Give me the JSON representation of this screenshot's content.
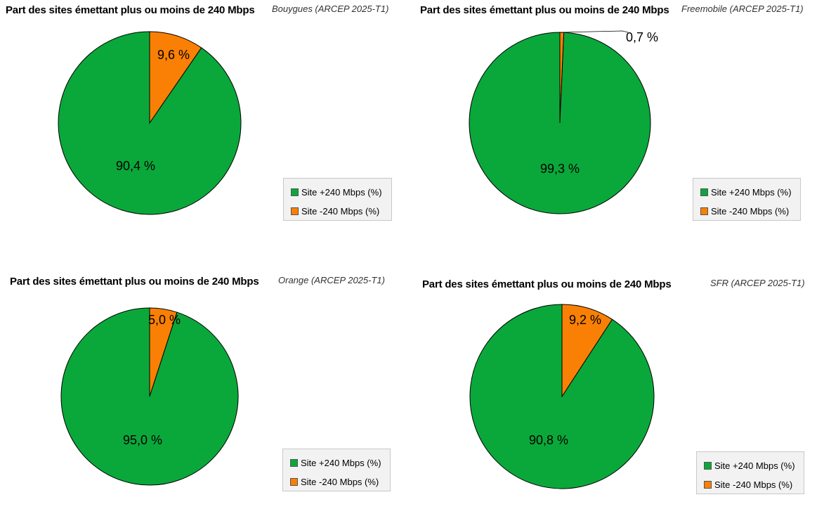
{
  "legend_labels": [
    "Site +240 Mbps (%)",
    "Site -240 Mbps (%)"
  ],
  "colors": {
    "above": "#0aa83a",
    "below": "#f98005"
  },
  "chart_data": [
    {
      "type": "pie",
      "title": "Part des sites émettant plus ou moins de 240 Mbps",
      "source": "Bouygues (ARCEP 2025-T1)",
      "labels": [
        "Site +240 Mbps (%)",
        "Site -240 Mbps (%)"
      ],
      "values": [
        90.4,
        9.6
      ],
      "value_labels": [
        "90,4 %",
        "9,6 %"
      ]
    },
    {
      "type": "pie",
      "title": "Part des sites émettant plus ou moins de 240 Mbps",
      "source": "Freemobile (ARCEP 2025-T1)",
      "labels": [
        "Site +240 Mbps (%)",
        "Site -240 Mbps (%)"
      ],
      "values": [
        99.3,
        0.7
      ],
      "value_labels": [
        "99,3 %",
        "0,7 %"
      ]
    },
    {
      "type": "pie",
      "title": "Part des sites émettant plus ou moins de 240 Mbps",
      "source": "Orange (ARCEP 2025-T1)",
      "labels": [
        "Site +240 Mbps (%)",
        "Site -240 Mbps (%)"
      ],
      "values": [
        95.0,
        5.0
      ],
      "value_labels": [
        "95,0 %",
        "5,0 %"
      ]
    },
    {
      "type": "pie",
      "title": "Part des sites émettant plus ou moins de 240 Mbps",
      "source": "SFR (ARCEP 2025-T1)",
      "labels": [
        "Site +240 Mbps (%)",
        "Site -240 Mbps (%)"
      ],
      "values": [
        90.8,
        9.2
      ],
      "value_labels": [
        "90,8 %",
        "9,2 %"
      ]
    }
  ]
}
